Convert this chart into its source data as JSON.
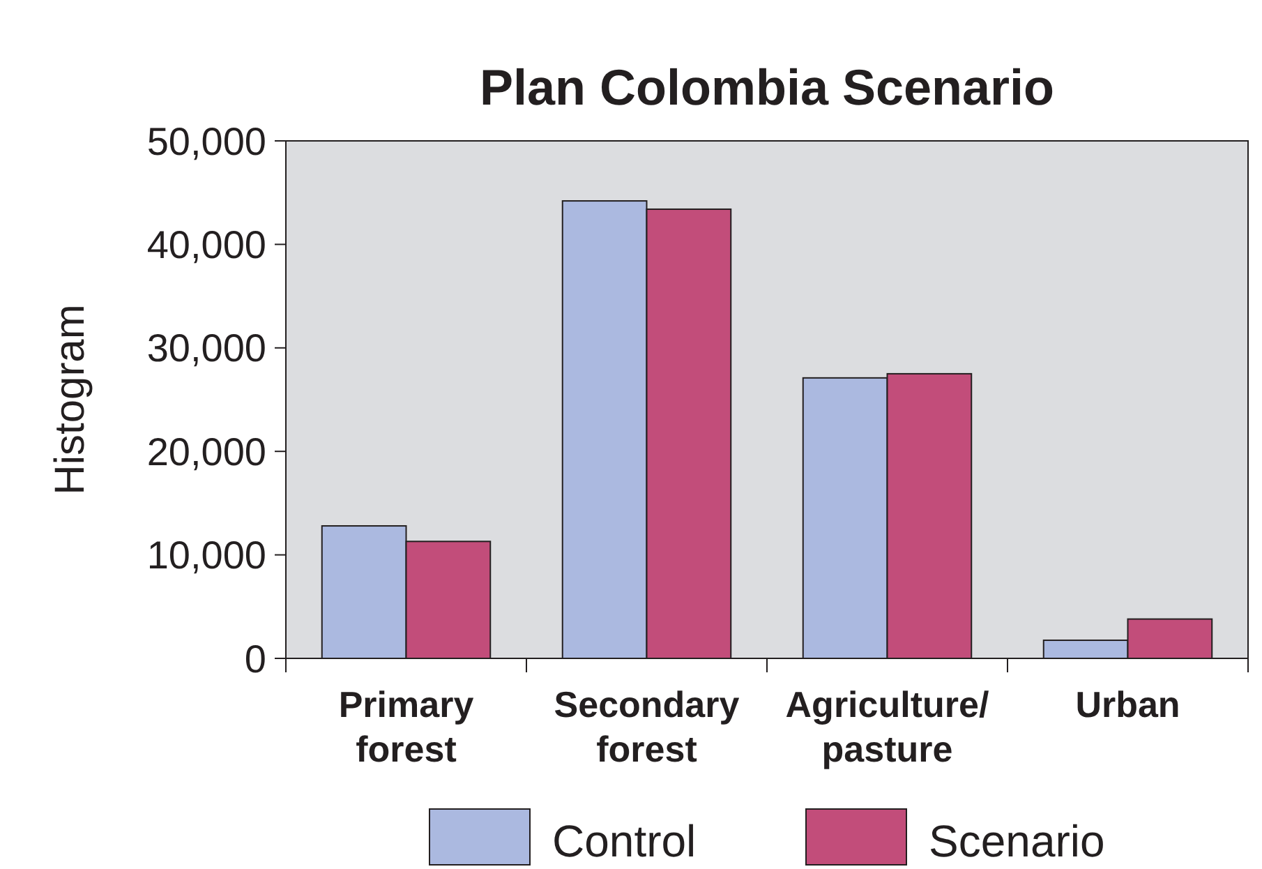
{
  "chart_data": {
    "type": "bar",
    "title": "Plan Colombia Scenario",
    "ylabel": "Histogram",
    "categories": [
      "Primary\nforest",
      "Secondary\nforest",
      "Agriculture/\npasture",
      "Urban"
    ],
    "series": [
      {
        "name": "Control",
        "color": "#abb9e0",
        "values": [
          12800,
          44200,
          27100,
          1750
        ]
      },
      {
        "name": "Scenario",
        "color": "#c24d7a",
        "values": [
          11300,
          43400,
          27500,
          3800
        ]
      }
    ],
    "ylim": [
      0,
      50000
    ],
    "yticks": [
      {
        "value": 0,
        "label": "0"
      },
      {
        "value": 10000,
        "label": "10,000"
      },
      {
        "value": 20000,
        "label": "20,000"
      },
      {
        "value": 30000,
        "label": "30,000"
      },
      {
        "value": 40000,
        "label": "40,000"
      },
      {
        "value": 50000,
        "label": "50,000"
      }
    ],
    "grid": false,
    "legend": "bottom"
  }
}
